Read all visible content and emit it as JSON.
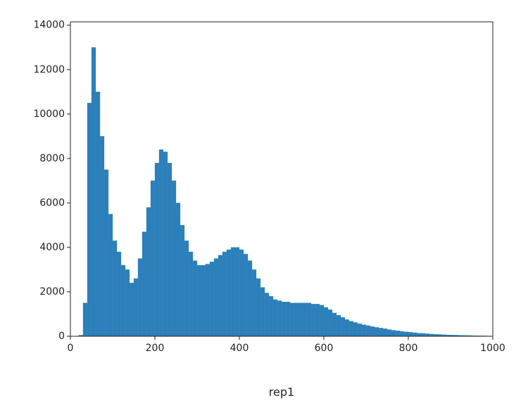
{
  "chart_data": {
    "type": "histogram",
    "xlabel": "rep1",
    "color": "#2c7fb8",
    "bins": [
      0,
      10,
      20,
      30,
      40,
      50,
      60,
      70,
      80,
      90,
      100,
      110,
      120,
      130,
      140,
      150,
      160,
      170,
      180,
      190,
      200,
      210,
      220,
      230,
      240,
      250,
      260,
      270,
      280,
      290,
      300,
      310,
      320,
      330,
      340,
      350,
      360,
      370,
      380,
      390,
      400,
      410,
      420,
      430,
      440,
      450,
      460,
      470,
      480,
      490,
      500,
      510,
      520,
      530,
      540,
      550,
      560,
      570,
      580,
      590,
      600,
      610,
      620,
      630,
      640,
      650,
      660,
      670,
      680,
      690,
      700,
      710,
      720,
      730,
      740,
      750,
      760,
      770,
      780,
      790,
      800,
      810,
      820,
      830,
      840,
      850,
      860,
      870,
      880,
      890,
      900,
      910,
      920,
      930,
      940,
      950,
      960,
      970,
      980,
      990,
      1000
    ],
    "values": [
      0,
      0,
      50,
      1500,
      10500,
      13000,
      11000,
      9000,
      7500,
      5500,
      4300,
      3800,
      3200,
      3000,
      2400,
      2600,
      3500,
      4700,
      5800,
      7000,
      7800,
      8400,
      8300,
      7800,
      7000,
      6000,
      5000,
      4300,
      3800,
      3400,
      3200,
      3200,
      3250,
      3350,
      3500,
      3650,
      3800,
      3900,
      4000,
      4000,
      3900,
      3700,
      3400,
      3000,
      2600,
      2200,
      1950,
      1800,
      1650,
      1600,
      1550,
      1550,
      1500,
      1500,
      1500,
      1500,
      1500,
      1450,
      1450,
      1400,
      1300,
      1200,
      1050,
      950,
      850,
      750,
      680,
      620,
      560,
      520,
      480,
      440,
      400,
      370,
      340,
      300,
      270,
      250,
      220,
      200,
      180,
      160,
      140,
      130,
      115,
      100,
      90,
      80,
      70,
      60,
      55,
      50,
      45,
      40,
      35,
      30,
      25,
      20,
      18,
      15
    ],
    "xlim": [
      0,
      1000
    ],
    "ylim": [
      0,
      14150
    ],
    "xticks": [
      0,
      200,
      400,
      600,
      800,
      1000
    ],
    "yticks": [
      0,
      2000,
      4000,
      6000,
      8000,
      10000,
      12000,
      14000
    ]
  }
}
